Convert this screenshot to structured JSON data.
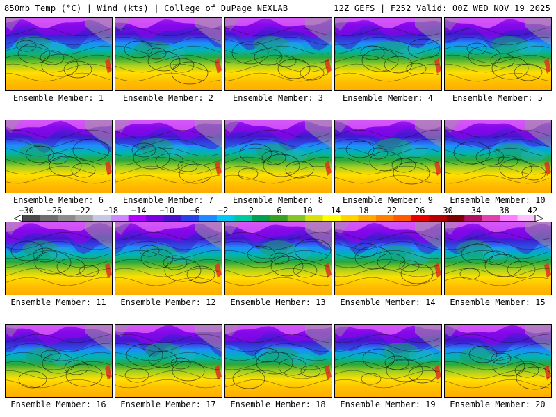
{
  "header": {
    "left": "850mb Temp (°C) | Wind (kts) | College of DuPage NEXLAB",
    "right": "12Z GEFS | F252 Valid: 00Z WED NOV 19 2025"
  },
  "panels": [
    {
      "label": "Ensemble Member: 1"
    },
    {
      "label": "Ensemble Member: 2"
    },
    {
      "label": "Ensemble Member: 3"
    },
    {
      "label": "Ensemble Member: 4"
    },
    {
      "label": "Ensemble Member: 5"
    },
    {
      "label": "Ensemble Member: 6"
    },
    {
      "label": "Ensemble Member: 7"
    },
    {
      "label": "Ensemble Member: 8"
    },
    {
      "label": "Ensemble Member: 9"
    },
    {
      "label": "Ensemble Member: 10"
    },
    {
      "label": "Ensemble Member: 11"
    },
    {
      "label": "Ensemble Member: 12"
    },
    {
      "label": "Ensemble Member: 13"
    },
    {
      "label": "Ensemble Member: 14"
    },
    {
      "label": "Ensemble Member: 15"
    },
    {
      "label": "Ensemble Member: 16"
    },
    {
      "label": "Ensemble Member: 17"
    },
    {
      "label": "Ensemble Member: 18"
    },
    {
      "label": "Ensemble Member: 19"
    },
    {
      "label": "Ensemble Member: 20"
    }
  ],
  "colorbar": {
    "ticks": [
      "−30",
      "−26",
      "−22",
      "−18",
      "−14",
      "−10",
      "−6",
      "−2",
      "2",
      "6",
      "10",
      "14",
      "18",
      "22",
      "26",
      "30",
      "34",
      "38",
      "42"
    ],
    "colors": [
      "#4a4a4a",
      "#6e6e6e",
      "#8c8c8c",
      "#a8a8a8",
      "#c8c8e6",
      "#cc88ff",
      "#b000ff",
      "#7a00e0",
      "#4a10cc",
      "#2a40e8",
      "#1e8cff",
      "#00c8f0",
      "#00c8a0",
      "#00a050",
      "#3aa020",
      "#86c428",
      "#d8e010",
      "#ffff00",
      "#ffd200",
      "#ffaa00",
      "#ff8000",
      "#ff5a00",
      "#e60000",
      "#b40000",
      "#7d0000",
      "#b01060",
      "#e040b0",
      "#ff80ff",
      "#ffc0ff"
    ]
  }
}
